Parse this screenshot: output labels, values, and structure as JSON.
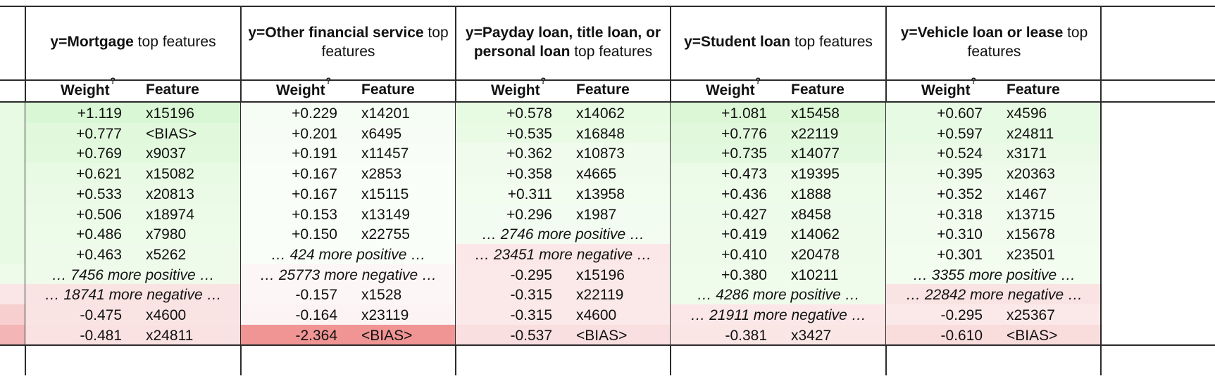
{
  "header": {
    "weight_label": "Weight",
    "weight_sup": "?",
    "feature_label": "Feature"
  },
  "panels": [
    {
      "title_bold": "y=Mortgage",
      "title_rest": " top features",
      "rows": [
        {
          "w": "+1.119",
          "f": "x15196",
          "bg": "#d9f7d4"
        },
        {
          "w": "+0.777",
          "f": "<BIAS>",
          "bg": "#e1f8dc"
        },
        {
          "w": "+0.769",
          "f": "x9037",
          "bg": "#e2f9dd"
        },
        {
          "w": "+0.621",
          "f": "x15082",
          "bg": "#e8fae3"
        },
        {
          "w": "+0.533",
          "f": "x20813",
          "bg": "#ebfae7"
        },
        {
          "w": "+0.506",
          "f": "x18974",
          "bg": "#ecfbe8"
        },
        {
          "w": "+0.486",
          "f": "x7980",
          "bg": "#edfbe9"
        },
        {
          "w": "+0.463",
          "f": "x5262",
          "bg": "#eefbea"
        },
        {
          "note": "… 7456 more positive …",
          "bg": "#eefbea"
        },
        {
          "note": "… 18741 more negative …",
          "bg": "#fae3e3"
        },
        {
          "w": "-0.475",
          "f": "x4600",
          "bg": "#fae3e3"
        },
        {
          "w": "-0.481",
          "f": "x24811",
          "bg": "#fae2e2"
        }
      ]
    },
    {
      "title_bold": "y=Other financial service",
      "title_rest": " top features",
      "rows": [
        {
          "w": "+0.229",
          "f": "x14201",
          "bg": "#f6fdf5"
        },
        {
          "w": "+0.201",
          "f": "x6495",
          "bg": "#f7fdf6"
        },
        {
          "w": "+0.191",
          "f": "x11457",
          "bg": "#f8fdf7"
        },
        {
          "w": "+0.167",
          "f": "x2853",
          "bg": "#f9fef8"
        },
        {
          "w": "+0.167",
          "f": "x15115",
          "bg": "#f9fef8"
        },
        {
          "w": "+0.153",
          "f": "x13149",
          "bg": "#f9fef8"
        },
        {
          "w": "+0.150",
          "f": "x22755",
          "bg": "#f9fef8"
        },
        {
          "note": "… 424 more positive …",
          "bg": "#f9fef8"
        },
        {
          "note": "… 25773 more negative …",
          "bg": "#fdf6f6"
        },
        {
          "w": "-0.157",
          "f": "x1528",
          "bg": "#fdf6f6"
        },
        {
          "w": "-0.164",
          "f": "x23119",
          "bg": "#fcf4f4"
        },
        {
          "w": "-2.364",
          "f": "<BIAS>",
          "bg": "#f09494"
        }
      ]
    },
    {
      "title_bold": "y=Payday loan, title loan, or personal loan",
      "title_rest": " top features",
      "rows": [
        {
          "w": "+0.578",
          "f": "x14062",
          "bg": "#e7fae2"
        },
        {
          "w": "+0.535",
          "f": "x16848",
          "bg": "#e9fae5"
        },
        {
          "w": "+0.362",
          "f": "x10873",
          "bg": "#f0fbed"
        },
        {
          "w": "+0.358",
          "f": "x4665",
          "bg": "#f0fbed"
        },
        {
          "w": "+0.311",
          "f": "x13958",
          "bg": "#f2fcef"
        },
        {
          "w": "+0.296",
          "f": "x1987",
          "bg": "#f2fcf0"
        },
        {
          "note": "… 2746 more positive …",
          "bg": "#f2fcf0"
        },
        {
          "note": "… 23451 more negative …",
          "bg": "#fbe7e7"
        },
        {
          "w": "-0.295",
          "f": "x15196",
          "bg": "#fbe9e9"
        },
        {
          "w": "-0.315",
          "f": "x22119",
          "bg": "#fbe8e8"
        },
        {
          "w": "-0.315",
          "f": "x4600",
          "bg": "#fbe8e8"
        },
        {
          "w": "-0.537",
          "f": "<BIAS>",
          "bg": "#f9dfdf"
        }
      ]
    },
    {
      "title_bold": "y=Student loan",
      "title_rest": " top features",
      "rows": [
        {
          "w": "+1.081",
          "f": "x15458",
          "bg": "#dbf7d5"
        },
        {
          "w": "+0.776",
          "f": "x22119",
          "bg": "#e2f8dd"
        },
        {
          "w": "+0.735",
          "f": "x14077",
          "bg": "#e3f9df"
        },
        {
          "w": "+0.473",
          "f": "x19395",
          "bg": "#ecfbe8"
        },
        {
          "w": "+0.436",
          "f": "x1888",
          "bg": "#edfbe9"
        },
        {
          "w": "+0.427",
          "f": "x8458",
          "bg": "#edfbea"
        },
        {
          "w": "+0.419",
          "f": "x14062",
          "bg": "#eefbea"
        },
        {
          "w": "+0.410",
          "f": "x20478",
          "bg": "#eefbea"
        },
        {
          "w": "+0.380",
          "f": "x10211",
          "bg": "#effbeb"
        },
        {
          "note": "… 4286 more positive …",
          "bg": "#effbeb"
        },
        {
          "note": "… 21911 more negative …",
          "bg": "#fbe7e7"
        },
        {
          "w": "-0.381",
          "f": "x3427",
          "bg": "#fbe6e6"
        }
      ]
    },
    {
      "title_bold": "y=Vehicle loan or lease",
      "title_rest": " top features",
      "rows": [
        {
          "w": "+0.607",
          "f": "x4596",
          "bg": "#e7fae3"
        },
        {
          "w": "+0.597",
          "f": "x24811",
          "bg": "#e7fae3"
        },
        {
          "w": "+0.524",
          "f": "x3171",
          "bg": "#eafae6"
        },
        {
          "w": "+0.395",
          "f": "x20363",
          "bg": "#eefbea"
        },
        {
          "w": "+0.352",
          "f": "x1467",
          "bg": "#f0fbed"
        },
        {
          "w": "+0.318",
          "f": "x13715",
          "bg": "#f1fcee"
        },
        {
          "w": "+0.310",
          "f": "x15678",
          "bg": "#f1fcef"
        },
        {
          "w": "+0.301",
          "f": "x23501",
          "bg": "#f2fcef"
        },
        {
          "note": "… 3355 more positive …",
          "bg": "#f2fcef"
        },
        {
          "note": "… 22842 more negative …",
          "bg": "#fae3e3"
        },
        {
          "w": "-0.295",
          "f": "x25367",
          "bg": "#fbe8e8"
        },
        {
          "w": "-0.610",
          "f": "<BIAS>",
          "bg": "#f9dcdc"
        }
      ]
    }
  ],
  "left_strip": {
    "rows": [
      {
        "bg": "#e8fae4"
      },
      {
        "bg": "#e8fae4"
      },
      {
        "bg": "#e8fae4"
      },
      {
        "bg": "#e8fae4"
      },
      {
        "bg": "#e8fae4"
      },
      {
        "bg": "#e8fae4"
      },
      {
        "bg": "#e8fae4"
      },
      {
        "bg": "#e8fae4"
      },
      {
        "bg": "#eefbea"
      },
      {
        "bg": "#fae6e6"
      },
      {
        "bg": "#f7cfcf"
      },
      {
        "bg": "#f3b5b5"
      }
    ]
  }
}
